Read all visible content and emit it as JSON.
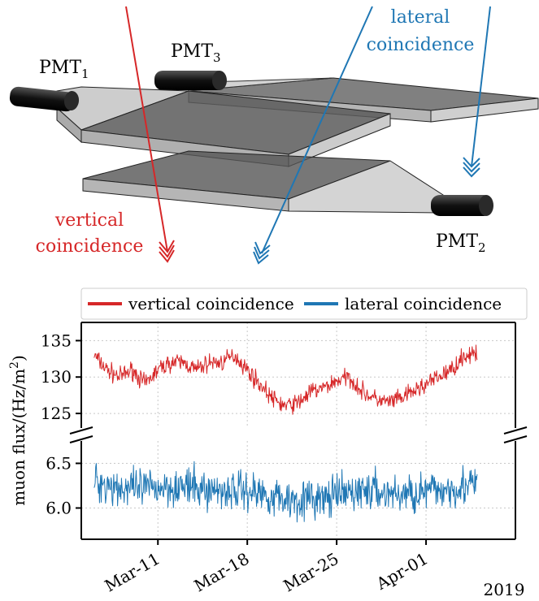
{
  "diagram": {
    "pmt_labels": [
      {
        "name": "PMT",
        "sub": "1"
      },
      {
        "name": "PMT",
        "sub": "3"
      },
      {
        "name": "PMT",
        "sub": "2"
      }
    ],
    "vertical_label": [
      "vertical",
      "coincidence"
    ],
    "lateral_label": [
      "lateral",
      "coincidence"
    ],
    "colors": {
      "vertical": "#d62728",
      "lateral": "#1f77b4",
      "scint_light": "#c8c8c8",
      "scint_dark": "#555555",
      "pmt": "#1a1a1a"
    }
  },
  "chart_data": {
    "type": "line",
    "ylabel_parts": {
      "pre": "muon flux/(Hz/m",
      "sup": "2",
      "post": ")"
    },
    "year_label": "2019",
    "x_dates": [
      "2019-03-06",
      "2019-04-05"
    ],
    "x_ticks": [
      {
        "date": "2019-03-11",
        "label": "Mar-11"
      },
      {
        "date": "2019-03-18",
        "label": "Mar-18"
      },
      {
        "date": "2019-03-25",
        "label": "Mar-25"
      },
      {
        "date": "2019-04-01",
        "label": "Apr-01"
      }
    ],
    "x_range": [
      "2019-03-05",
      "2019-04-08"
    ],
    "grid": true,
    "legend_placement": "top",
    "broken_y_axis": true,
    "upper_panel": {
      "ylim": [
        123,
        137.5
      ],
      "yticks": [
        125,
        130,
        135
      ]
    },
    "lower_panel": {
      "ylim": [
        5.65,
        6.75
      ],
      "yticks": [
        6.0,
        6.5
      ]
    },
    "series": [
      {
        "name": "vertical coincidence",
        "color": "#d62728",
        "panel": "upper",
        "trend": [
          [
            0,
            133
          ],
          [
            1,
            131
          ],
          [
            2,
            130
          ],
          [
            3,
            131
          ],
          [
            4,
            129
          ],
          [
            5,
            131
          ],
          [
            6,
            132
          ],
          [
            7,
            132
          ],
          [
            8,
            131
          ],
          [
            9,
            132
          ],
          [
            10,
            132
          ],
          [
            11,
            133
          ],
          [
            12,
            131
          ],
          [
            13,
            129
          ],
          [
            14,
            127
          ],
          [
            15,
            126
          ],
          [
            16,
            126.5
          ],
          [
            17,
            128
          ],
          [
            18,
            128.5
          ],
          [
            19,
            129.5
          ],
          [
            20,
            130
          ],
          [
            21,
            128
          ],
          [
            22,
            127
          ],
          [
            23,
            126.5
          ],
          [
            24,
            127
          ],
          [
            25,
            128
          ],
          [
            26,
            129
          ],
          [
            27,
            130
          ],
          [
            28,
            131
          ],
          [
            29,
            133
          ]
        ],
        "noise_amplitude": 1.2
      },
      {
        "name": "lateral coincidence",
        "color": "#1f77b4",
        "panel": "lower",
        "trend": [
          [
            0,
            6.3
          ],
          [
            3,
            6.2
          ],
          [
            6,
            6.25
          ],
          [
            9,
            6.2
          ],
          [
            12,
            6.2
          ],
          [
            15,
            6.1
          ],
          [
            18,
            6.1
          ],
          [
            21,
            6.2
          ],
          [
            24,
            6.15
          ],
          [
            27,
            6.2
          ],
          [
            29,
            6.25
          ]
        ],
        "noise_amplitude": 0.22
      }
    ]
  }
}
